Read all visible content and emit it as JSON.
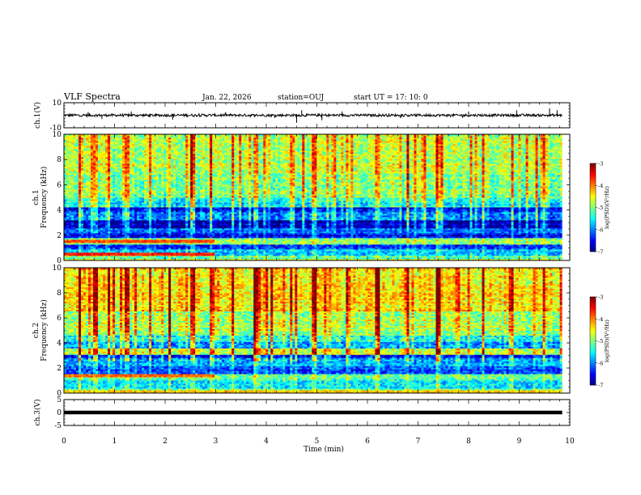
{
  "header": {
    "title": "VLF Spectra",
    "date": "Jan. 22, 2026",
    "station": "station=OUJ",
    "start": "start  UT =   17: 10: 0"
  },
  "chart_data": {
    "type": "heatmap",
    "title": "VLF Spectra",
    "xlabel": "Time (min)",
    "xlim": [
      0,
      10
    ],
    "xticks": [
      "0",
      "1",
      "2",
      "3",
      "4",
      "5",
      "6",
      "7",
      "8",
      "9",
      "10"
    ],
    "data_end_min": 9.85,
    "panels": [
      {
        "name": "ch1-waveform",
        "type": "line",
        "ylabel": "ch.1(V)",
        "ylim": [
          -10,
          10
        ],
        "yticks": [
          "10",
          "-10"
        ],
        "baseline": 0,
        "noise_amplitude": 1,
        "spikes": [
          {
            "t": 0.48,
            "v": 2.5
          },
          {
            "t": 0.75,
            "v": -3
          },
          {
            "t": 1.33,
            "v": 3
          },
          {
            "t": 2.15,
            "v": -3.5
          },
          {
            "t": 4.6,
            "v": -6
          },
          {
            "t": 4.7,
            "v": 4
          },
          {
            "t": 5.1,
            "v": -4
          },
          {
            "t": 5.5,
            "v": 3
          },
          {
            "t": 8.0,
            "v": 3
          },
          {
            "t": 8.95,
            "v": 4
          },
          {
            "t": 9.6,
            "v": 5.5
          },
          {
            "t": 9.75,
            "v": 4
          }
        ]
      },
      {
        "name": "ch1-spectrogram",
        "type": "heatmap",
        "ylabel": "ch.1 Frequency (kHz)",
        "ylim": [
          0,
          10
        ],
        "yticks": [
          "0",
          "2",
          "4",
          "6",
          "8",
          "10"
        ],
        "z_label": "log(PSD)(V²/Hz)",
        "zlim": [
          -7,
          -3
        ],
        "cbar_ticks": [
          "-3",
          "-4",
          "-5",
          "-6",
          "-7"
        ],
        "bands": [
          {
            "f0": 0.0,
            "f1": 0.35,
            "level": -5.2
          },
          {
            "f0": 0.35,
            "f1": 0.9,
            "level": -5.8
          },
          {
            "f0": 0.9,
            "f1": 1.3,
            "level": -6.3
          },
          {
            "f0": 1.3,
            "f1": 1.8,
            "level": -5.0
          },
          {
            "f0": 1.8,
            "f1": 2.2,
            "level": -6.6
          },
          {
            "f0": 2.2,
            "f1": 2.6,
            "level": -6.0
          },
          {
            "f0": 2.6,
            "f1": 3.2,
            "level": -6.8
          },
          {
            "f0": 3.2,
            "f1": 3.8,
            "level": -6.1
          },
          {
            "f0": 3.8,
            "f1": 4.2,
            "level": -6.5
          },
          {
            "f0": 4.2,
            "f1": 5.0,
            "level": -5.5
          },
          {
            "f0": 5.0,
            "f1": 7.0,
            "level": -5.0
          },
          {
            "f0": 7.0,
            "f1": 10.0,
            "level": -4.8
          }
        ],
        "features": [
          {
            "t0": 0.0,
            "t1": 3.0,
            "f0": 1.35,
            "f1": 1.7,
            "level": -3.8
          },
          {
            "t0": 0.0,
            "t1": 3.0,
            "f0": 0.4,
            "f1": 0.6,
            "level": -3.6
          },
          {
            "t0": 0.0,
            "t1": 9.85,
            "f0": 0.0,
            "f1": 0.15,
            "level": -4.5
          }
        ],
        "bursts": [
          0.3,
          0.62,
          0.9,
          1.25,
          1.7,
          2.1,
          2.55,
          2.9,
          3.35,
          3.8,
          4.5,
          4.95,
          5.6,
          6.2,
          6.8,
          7.4,
          8.3,
          8.85,
          9.5
        ],
        "burst_level": -4.0
      },
      {
        "name": "ch2-spectrogram",
        "type": "heatmap",
        "ylabel": "ch.2 Frequency (kHz)",
        "ylim": [
          0,
          10
        ],
        "yticks": [
          "0",
          "2",
          "4",
          "6",
          "8",
          "10"
        ],
        "z_label": "log(PSD)(V²/Hz)",
        "zlim": [
          -7,
          -3
        ],
        "cbar_ticks": [
          "-3",
          "-4",
          "-5",
          "-6",
          "-7"
        ],
        "bands": [
          {
            "f0": 0.0,
            "f1": 0.4,
            "level": -5.0
          },
          {
            "f0": 0.4,
            "f1": 1.0,
            "level": -5.6
          },
          {
            "f0": 1.0,
            "f1": 1.6,
            "level": -5.2
          },
          {
            "f0": 1.6,
            "f1": 2.2,
            "level": -6.2
          },
          {
            "f0": 2.2,
            "f1": 2.8,
            "level": -5.8
          },
          {
            "f0": 2.8,
            "f1": 3.1,
            "level": -6.5
          },
          {
            "f0": 3.1,
            "f1": 3.6,
            "level": -4.6
          },
          {
            "f0": 3.6,
            "f1": 4.1,
            "level": -5.9
          },
          {
            "f0": 4.1,
            "f1": 4.6,
            "level": -5.4
          },
          {
            "f0": 4.6,
            "f1": 6.5,
            "level": -4.8
          },
          {
            "f0": 6.5,
            "f1": 10.0,
            "level": -4.4
          }
        ],
        "features": [
          {
            "t0": 0.0,
            "t1": 3.0,
            "f0": 1.3,
            "f1": 1.6,
            "level": -3.9
          },
          {
            "t0": 0.0,
            "t1": 9.85,
            "f0": 0.0,
            "f1": 0.2,
            "level": -4.3
          }
        ],
        "bursts": [
          0.3,
          0.62,
          0.9,
          1.25,
          1.7,
          2.1,
          2.55,
          2.9,
          3.35,
          3.8,
          4.5,
          4.95,
          5.6,
          6.2,
          6.8,
          7.4,
          8.3,
          8.85,
          9.5
        ],
        "burst_level": -3.6
      },
      {
        "name": "ch3-waveform",
        "type": "line",
        "ylabel": "ch.3(V)",
        "ylim": [
          -5,
          5
        ],
        "yticks": [
          "5",
          "0",
          "-5"
        ],
        "baseline": 0,
        "noise_amplitude": 0.5,
        "spikes": []
      }
    ]
  }
}
